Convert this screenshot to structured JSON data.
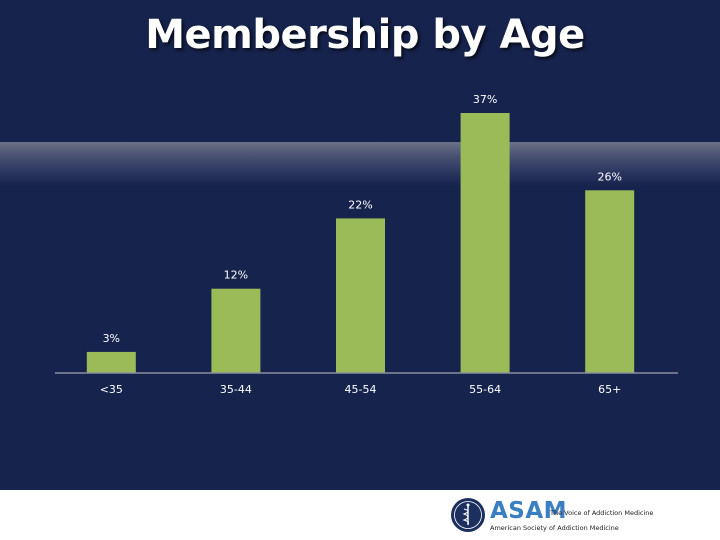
{
  "chart_data": {
    "type": "bar",
    "title": "Membership by Age",
    "categories": [
      "<35",
      "35-44",
      "45-54",
      "55-64",
      "65+"
    ],
    "values": [
      3,
      12,
      22,
      37,
      26
    ],
    "data_labels": [
      "3%",
      "12%",
      "22%",
      "37%",
      "26%"
    ],
    "ylim": [
      0,
      40
    ],
    "grid": false,
    "legend": "none",
    "bar_color": "#9bbb59",
    "axis_color": "#8a8f9e",
    "label_color": "#ffffff"
  },
  "footer": {
    "logo_icon": "caduceus-seal-icon",
    "logo_word": "ASAM",
    "tagline": "The Voice of Addiction Medicine",
    "org_name": "American Society of Addiction Medicine",
    "logo_color": "#3a7fc0"
  }
}
